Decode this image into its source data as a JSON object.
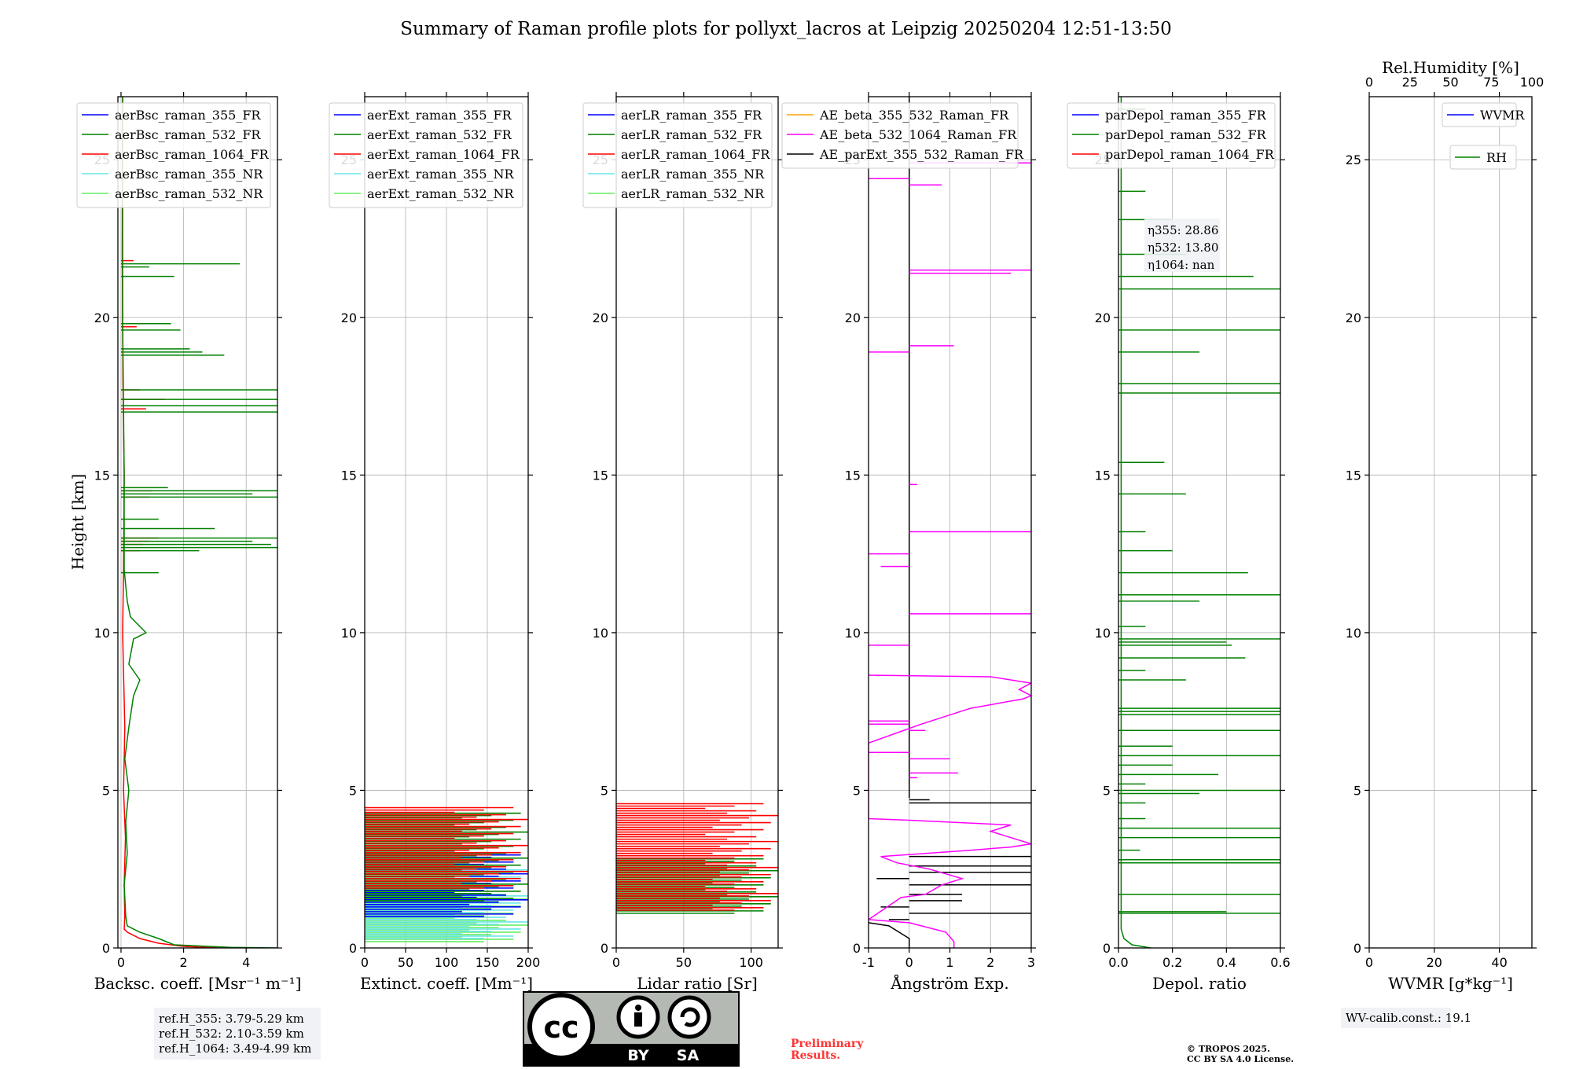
{
  "title": "Summary of Raman profile plots for pollyxt_lacros at Leipzig 20250204 12:51-13:50",
  "y_axis": {
    "label": "Height [km]",
    "range": [
      0,
      27
    ],
    "ticks": [
      0,
      5,
      10,
      15,
      20,
      25
    ]
  },
  "colors": {
    "blue": "#0000ff",
    "green": "#008000",
    "red": "#ff0000",
    "cyan": "#66e6e6",
    "lightgreen": "#66ee66",
    "orange": "#ffa500",
    "magenta": "#ff00ff",
    "black": "#000000",
    "grid": "#b0b0b0",
    "box": "#f0f2f5",
    "preliminary": "#ff3333"
  },
  "chart_data": [
    {
      "type": "line",
      "id": "bsc",
      "xlabel": "Backsc. coeff. [Msr⁻¹ m⁻¹]",
      "xlim": [
        -0.1,
        5
      ],
      "xticks": [
        0,
        2,
        4
      ],
      "legend": [
        "aerBsc_raman_355_FR",
        "aerBsc_raman_532_FR",
        "aerBsc_raman_1064_FR",
        "aerBsc_raman_355_NR",
        "aerBsc_raman_532_NR"
      ],
      "legend_colors": [
        "blue",
        "green",
        "red",
        "cyan",
        "lightgreen"
      ],
      "series": [
        {
          "name": "aerBsc_raman_1064_FR",
          "color": "red",
          "points": [
            [
              3.1,
              0
            ],
            [
              2.0,
              0.05
            ],
            [
              1.2,
              0.15
            ],
            [
              0.6,
              0.3
            ],
            [
              0.2,
              0.5
            ],
            [
              0.1,
              0.6
            ],
            [
              0.12,
              1
            ],
            [
              0.1,
              2
            ],
            [
              0.14,
              3.5
            ],
            [
              0.08,
              5
            ],
            [
              0.12,
              7
            ],
            [
              0.05,
              10
            ],
            [
              0.08,
              12
            ],
            [
              0.1,
              15
            ],
            [
              0.06,
              18
            ],
            [
              0.04,
              22
            ],
            [
              0.05,
              27
            ]
          ],
          "spikes": [
            [
              13.0,
              1.2
            ],
            [
              12.9,
              0.9
            ],
            [
              12.8,
              0.7
            ],
            [
              12.6,
              0.6
            ],
            [
              14.5,
              1.0
            ],
            [
              14.3,
              0.9
            ],
            [
              17.4,
              1.4
            ],
            [
              17.1,
              0.8
            ],
            [
              17.7,
              0.6
            ],
            [
              19.8,
              0.9
            ],
            [
              19.7,
              0.5
            ],
            [
              21.8,
              0.4
            ]
          ]
        },
        {
          "name": "aerBsc_raman_532_FR",
          "color": "green",
          "points": [
            [
              5,
              0
            ],
            [
              3.5,
              0.02
            ],
            [
              1.7,
              0.1
            ],
            [
              1.2,
              0.3
            ],
            [
              0.6,
              0.5
            ],
            [
              0.2,
              0.7
            ],
            [
              0.15,
              1
            ],
            [
              0.1,
              2
            ],
            [
              0.2,
              3
            ],
            [
              0.15,
              4
            ],
            [
              0.25,
              5
            ],
            [
              0.12,
              6
            ],
            [
              0.25,
              7
            ],
            [
              0.4,
              8
            ],
            [
              0.6,
              8.5
            ],
            [
              0.25,
              9
            ],
            [
              0.4,
              9.8
            ],
            [
              0.8,
              10
            ],
            [
              0.3,
              10.5
            ],
            [
              0.2,
              11
            ],
            [
              0.1,
              12
            ],
            [
              0.1,
              15
            ],
            [
              0.05,
              20
            ],
            [
              0.05,
              27
            ]
          ],
          "spikes": [
            [
              12.7,
              5
            ],
            [
              12.8,
              4.8
            ],
            [
              12.9,
              4.2
            ],
            [
              13.0,
              5
            ],
            [
              13.3,
              3
            ],
            [
              12.6,
              2.5
            ],
            [
              13.6,
              1.2
            ],
            [
              14.3,
              5
            ],
            [
              14.4,
              4.2
            ],
            [
              14.5,
              5
            ],
            [
              14.6,
              1.5
            ],
            [
              11.9,
              1.2
            ],
            [
              17.0,
              5
            ],
            [
              17.2,
              5
            ],
            [
              17.4,
              5
            ],
            [
              17.7,
              5
            ],
            [
              18.8,
              3.3
            ],
            [
              18.9,
              2.6
            ],
            [
              19.0,
              2.2
            ],
            [
              19.6,
              1.9
            ],
            [
              19.8,
              1.6
            ],
            [
              21.3,
              1.7
            ],
            [
              21.7,
              3.8
            ],
            [
              21.6,
              0.9
            ]
          ]
        }
      ]
    },
    {
      "type": "line",
      "id": "ext",
      "xlabel": "Extinct. coeff. [Mm⁻¹]",
      "xlim": [
        0,
        200
      ],
      "xticks": [
        0,
        50,
        100,
        150,
        200
      ],
      "legend": [
        "aerExt_raman_355_FR",
        "aerExt_raman_532_FR",
        "aerExt_raman_1064_FR",
        "aerExt_raman_355_NR",
        "aerExt_raman_532_NR"
      ],
      "legend_colors": [
        "blue",
        "green",
        "red",
        "cyan",
        "lightgreen"
      ],
      "series": [
        {
          "name": "aerExt_raman_532_NR",
          "color": "lightgreen",
          "hrange": [
            0.2,
            1.8
          ],
          "vrange": [
            0,
            200
          ]
        },
        {
          "name": "aerExt_raman_355_NR",
          "color": "cyan",
          "hrange": [
            0.3,
            2.6
          ],
          "vrange": [
            0,
            200
          ]
        },
        {
          "name": "aerExt_raman_355_FR",
          "color": "blue",
          "hrange": [
            1.0,
            3.0
          ],
          "vrange": [
            0,
            200
          ]
        },
        {
          "name": "aerExt_raman_532_FR",
          "color": "green",
          "hrange": [
            1.5,
            4.3
          ],
          "vrange": [
            0,
            200
          ]
        },
        {
          "name": "aerExt_raman_1064_FR",
          "color": "red",
          "hrange": [
            1.9,
            4.5
          ],
          "vrange": [
            0,
            200
          ]
        }
      ]
    },
    {
      "type": "line",
      "id": "lr",
      "xlabel": "Lidar ratio [Sr]",
      "xlim": [
        0,
        120
      ],
      "xticks": [
        0,
        50,
        100
      ],
      "legend": [
        "aerLR_raman_355_FR",
        "aerLR_raman_532_FR",
        "aerLR_raman_1064_FR",
        "aerLR_raman_355_NR",
        "aerLR_raman_532_NR"
      ],
      "legend_colors": [
        "blue",
        "green",
        "red",
        "cyan",
        "lightgreen"
      ],
      "series": [
        {
          "name": "aerLR_raman_532_FR",
          "color": "green",
          "hrange": [
            1.1,
            2.9
          ],
          "vrange": [
            0,
            120
          ]
        },
        {
          "name": "aerLR_raman_1064_FR",
          "color": "red",
          "hrange": [
            1.2,
            4.6
          ],
          "vrange": [
            0,
            120
          ]
        }
      ]
    },
    {
      "type": "line",
      "id": "ae",
      "xlabel": "Ångström Exp.",
      "xlim": [
        -1,
        3
      ],
      "xticks": [
        -1,
        0,
        1,
        2,
        3
      ],
      "legend": [
        "AE_beta_355_532_Raman_FR",
        "AE_beta_532_1064_Raman_FR",
        "AE_parExt_355_532_Raman_FR"
      ],
      "legend_colors": [
        "orange",
        "magenta",
        "black"
      ],
      "series": [
        {
          "name": "AE_parExt_355_532_Raman_FR",
          "color": "black",
          "points": [
            [
              0,
              0
            ],
            [
              0,
              0.3
            ],
            [
              -0.5,
              0.7
            ],
            [
              -1,
              0.8
            ]
          ],
          "upper": [
            [
              0,
              4.75
            ],
            [
              0,
              27
            ]
          ],
          "spikes": [
            [
              4.6,
              3
            ],
            [
              4.7,
              0.5
            ],
            [
              2.9,
              3
            ],
            [
              2.6,
              3
            ],
            [
              2.4,
              3
            ],
            [
              2.2,
              -0.8
            ],
            [
              2.0,
              3
            ],
            [
              1.7,
              1.3
            ],
            [
              1.5,
              1.3
            ],
            [
              1.3,
              -0.7
            ],
            [
              1.1,
              3
            ],
            [
              0.9,
              -0.5
            ]
          ]
        },
        {
          "name": "AE_beta_532_1064_Raman_FR",
          "color": "magenta",
          "points": [
            [
              1.1,
              0
            ],
            [
              1.1,
              0.2
            ],
            [
              0.9,
              0.5
            ],
            [
              0,
              0.8
            ],
            [
              -1,
              0.9
            ],
            [
              -0.2,
              1.6
            ],
            [
              0.4,
              1.7
            ],
            [
              0.8,
              2.0
            ],
            [
              1.3,
              2.2
            ],
            [
              0.5,
              2.5
            ],
            [
              -0.3,
              2.7
            ],
            [
              -0.7,
              2.9
            ],
            [
              1.5,
              3.1
            ],
            [
              2.5,
              3.2
            ],
            [
              3,
              3.3
            ],
            [
              2,
              3.7
            ],
            [
              2.5,
              3.9
            ],
            [
              0,
              4.05
            ],
            [
              -1,
              4.1
            ],
            [
              -1,
              6.5
            ],
            [
              0.3,
              7.1
            ],
            [
              1.5,
              7.6
            ],
            [
              2.8,
              7.9
            ],
            [
              3,
              8.0
            ],
            [
              2.7,
              8.2
            ],
            [
              3,
              8.4
            ],
            [
              2,
              8.6
            ],
            [
              -1,
              8.65
            ]
          ],
          "spikes": [
            [
              5.4,
              0.2
            ],
            [
              5.55,
              1.2
            ],
            [
              6.0,
              1.0
            ],
            [
              6.2,
              -1
            ],
            [
              6.9,
              0.4
            ],
            [
              7.1,
              -1
            ],
            [
              7.2,
              -1
            ],
            [
              9.6,
              -1
            ],
            [
              10.6,
              3
            ],
            [
              12.1,
              -0.7
            ],
            [
              12.5,
              -1
            ],
            [
              13.2,
              3
            ],
            [
              14.7,
              0.2
            ],
            [
              18.9,
              -1
            ],
            [
              19.1,
              1.1
            ],
            [
              21.4,
              2.5
            ],
            [
              21.5,
              3
            ],
            [
              24.2,
              0.8
            ],
            [
              24.4,
              -1
            ],
            [
              24.9,
              3
            ]
          ]
        }
      ]
    },
    {
      "type": "line",
      "id": "depol",
      "xlabel": "Depol. ratio",
      "xlim": [
        0,
        0.6
      ],
      "xticks": [
        0.0,
        0.2,
        0.4,
        0.6
      ],
      "legend": [
        "parDepol_raman_355_FR",
        "parDepol_raman_532_FR",
        "parDepol_raman_1064_FR"
      ],
      "legend_colors": [
        "blue",
        "green",
        "red"
      ],
      "series": [
        {
          "name": "parDepol_raman_532_FR",
          "color": "green",
          "points": [
            [
              0.12,
              0
            ],
            [
              0.05,
              0.1
            ],
            [
              0.02,
              0.3
            ],
            [
              0.01,
              0.6
            ],
            [
              0.01,
              27
            ]
          ],
          "spikes": [
            [
              1.1,
              0.6
            ],
            [
              1.15,
              0.4
            ],
            [
              1.7,
              0.6
            ],
            [
              2.8,
              0.6
            ],
            [
              2.7,
              0.6
            ],
            [
              3.1,
              0.08
            ],
            [
              3.5,
              0.6
            ],
            [
              3.8,
              0.6
            ],
            [
              4.1,
              0.1
            ],
            [
              4.6,
              0.1
            ],
            [
              4.9,
              0.3
            ],
            [
              5.0,
              0.6
            ],
            [
              5.2,
              0.1
            ],
            [
              5.5,
              0.37
            ],
            [
              5.8,
              0.2
            ],
            [
              6.1,
              0.6
            ],
            [
              6.4,
              0.2
            ],
            [
              6.9,
              0.6
            ],
            [
              7.4,
              0.6
            ],
            [
              7.5,
              0.6
            ],
            [
              7.6,
              0.6
            ],
            [
              8.5,
              0.25
            ],
            [
              8.8,
              0.1
            ],
            [
              9.2,
              0.47
            ],
            [
              9.6,
              0.42
            ],
            [
              9.7,
              0.4
            ],
            [
              9.8,
              0.6
            ],
            [
              10.2,
              0.1
            ],
            [
              11.0,
              0.3
            ],
            [
              11.2,
              0.6
            ],
            [
              11.9,
              0.48
            ],
            [
              12.6,
              0.2
            ],
            [
              13.2,
              0.1
            ],
            [
              14.4,
              0.25
            ],
            [
              15.4,
              0.17
            ],
            [
              17.6,
              0.6
            ],
            [
              17.9,
              0.6
            ],
            [
              18.9,
              0.3
            ],
            [
              19.6,
              0.6
            ],
            [
              20.9,
              0.6
            ],
            [
              21.3,
              0.5
            ],
            [
              22.0,
              0.25
            ],
            [
              23.1,
              0.2
            ],
            [
              24.0,
              0.1
            ],
            [
              26.6,
              0.1
            ]
          ]
        }
      ]
    },
    {
      "type": "line",
      "id": "wv",
      "xlabel": "WVMR [g*kg⁻¹]",
      "xlim": [
        0,
        50
      ],
      "xticks": [
        0,
        20,
        40
      ],
      "top_axis": {
        "label": "Rel.Humidity [%]",
        "ticks": [
          0,
          25,
          50,
          75,
          100
        ]
      },
      "legend": [
        "WVMR",
        "RH"
      ],
      "legend_colors": [
        "blue",
        "green"
      ],
      "series": []
    }
  ],
  "depol_annotation": [
    "η355: 28.86",
    "η532: 13.80",
    "η1064: nan"
  ],
  "eta": [
    {
      "sym": "η",
      "sub": "355",
      "value": ": 28.86"
    },
    {
      "sym": "η",
      "sub": "532",
      "value": ": 13.80"
    },
    {
      "sym": "η",
      "sub": "1064",
      "value": ": nan"
    }
  ],
  "ref_heights": [
    "ref.H_355: 3.79-5.29 km",
    "ref.H_532: 2.10-3.59 km",
    "ref.H_1064: 3.49-4.99 km"
  ],
  "wv_calib": "WV-calib.const.: 19.1",
  "license_badge": {
    "by": "BY",
    "sa": "SA",
    "cc": "cc"
  },
  "preliminary": [
    "Preliminary",
    "Results."
  ],
  "copyright": [
    "© TROPOS 2025.",
    "CC BY SA 4.0 License."
  ]
}
